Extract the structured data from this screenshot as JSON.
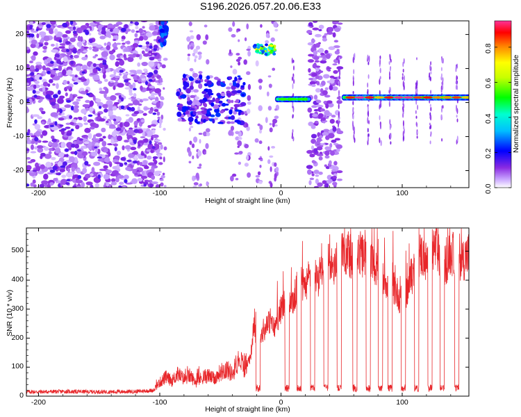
{
  "title": "S196.2026.057.20.06.E33",
  "colors": {
    "snr_line": "#e8262a",
    "axis": "#000000",
    "background": "#ffffff"
  },
  "chart_data": [
    {
      "type": "heatmap",
      "title": "S196.2026.057.20.06.E33",
      "xlabel": "Height of straight line (km)",
      "ylabel": "Frequency (Hz)",
      "xlim": [
        -210,
        155
      ],
      "ylim": [
        -25,
        24
      ],
      "x_ticks": [
        -200,
        -100,
        0,
        100
      ],
      "x_tick_labels": [
        "-200",
        "-100",
        "0",
        "100"
      ],
      "y_ticks": [
        20,
        10,
        0,
        -10,
        -20
      ],
      "y_tick_labels": [
        "20",
        "10",
        "0",
        "-10",
        "-20"
      ],
      "colorbar": {
        "label": "Normalized spectral amplitude",
        "ticks": [
          0.0,
          0.2,
          0.4,
          0.6,
          0.8
        ],
        "tick_labels": [
          "0.0",
          "0.2",
          "0.4",
          "0.6",
          "0.8"
        ],
        "range": [
          0,
          0.95
        ]
      },
      "features": [
        {
          "name": "tone-segment",
          "x_range": [
            -3,
            23
          ],
          "freq_hz": 1.0,
          "peak": 0.55
        },
        {
          "name": "tone-segment",
          "x_range": [
            52,
            155
          ],
          "freq_hz": 1.5,
          "peak": 0.95
        },
        {
          "name": "tone-streak",
          "x_range": [
            -22,
            -5
          ],
          "freq_hz": 15.5,
          "peak": 0.7
        },
        {
          "name": "burst",
          "x_range": [
            -100,
            -92
          ],
          "freq_hz": 19,
          "peak": 0.3
        }
      ]
    },
    {
      "type": "line",
      "xlabel": "Height of straight line (km)",
      "ylabel": "SNR (10 * v/v)",
      "xlim": [
        -210,
        155
      ],
      "ylim": [
        0,
        580
      ],
      "x_ticks": [
        -200,
        -100,
        0,
        100
      ],
      "x_tick_labels": [
        "-200",
        "-100",
        "0",
        "100"
      ],
      "y_ticks": [
        0,
        100,
        200,
        300,
        400,
        500
      ],
      "y_tick_labels": [
        "0",
        "100",
        "200",
        "300",
        "400",
        "500"
      ],
      "series": [
        {
          "name": "SNR",
          "x": [
            -210,
            -200,
            -180,
            -160,
            -140,
            -120,
            -105,
            -100,
            -95,
            -90,
            -85,
            -80,
            -75,
            -70,
            -65,
            -60,
            -55,
            -50,
            -45,
            -40,
            -35,
            -30,
            -25,
            -22,
            -20,
            -15,
            -10,
            -5,
            0,
            5,
            10,
            15,
            20,
            25,
            30,
            35,
            40,
            45,
            50,
            55,
            60,
            65,
            70,
            75,
            80,
            85,
            90,
            95,
            100,
            105,
            110,
            115,
            120,
            125,
            130,
            135,
            140,
            145,
            150,
            155
          ],
          "values": [
            15,
            15,
            16,
            15,
            15,
            16,
            20,
            40,
            55,
            45,
            65,
            50,
            60,
            40,
            55,
            60,
            50,
            70,
            80,
            65,
            110,
            85,
            130,
            240,
            150,
            200,
            240,
            220,
            280,
            320,
            300,
            380,
            340,
            420,
            380,
            400,
            440,
            410,
            450,
            470,
            420,
            460,
            440,
            420,
            400,
            380,
            360,
            340,
            300,
            350,
            410,
            460,
            430,
            480,
            470,
            420,
            460,
            450,
            440,
            460
          ]
        }
      ],
      "dropouts_x": [
        -19,
        5,
        15,
        26,
        37,
        48,
        61,
        72,
        82,
        90,
        101,
        112,
        123,
        133,
        145
      ]
    }
  ]
}
